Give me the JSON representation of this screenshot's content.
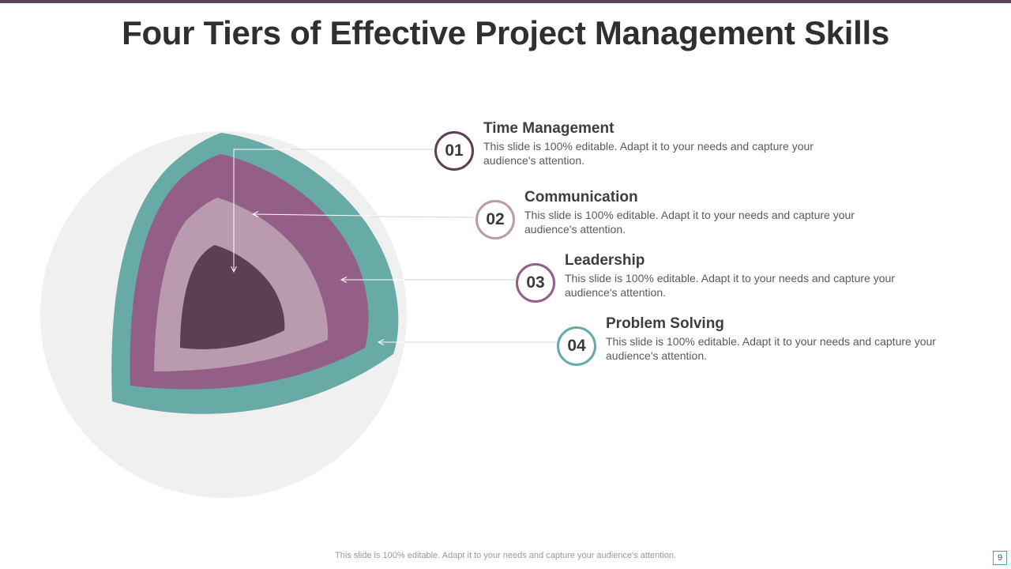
{
  "title": "Four Tiers of Effective Project Management Skills",
  "colors": {
    "top_bar": "#5a4457",
    "title": "#2f2f2f",
    "backdrop_circle": "#f0f0f0",
    "tier_1": "#67aaa6",
    "tier_2": "#935f86",
    "tier_3": "#b99aae",
    "tier_4": "#5c3e55"
  },
  "tiers": [
    {
      "number": "01",
      "heading": "Time Management",
      "description": "This slide is 100% editable. Adapt it to your needs and capture your audience's attention.",
      "badge_color": "#5c3e55"
    },
    {
      "number": "02",
      "heading": "Communication",
      "description": "This slide is 100% editable. Adapt it to your needs and capture your audience's attention.",
      "badge_color": "#b99aae"
    },
    {
      "number": "03",
      "heading": "Leadership",
      "description": "This slide is 100% editable. Adapt it to your needs and capture your audience's attention.",
      "badge_color": "#935f86"
    },
    {
      "number": "04",
      "heading": "Problem Solving",
      "description": "This slide is 100% editable. Adapt it to your needs and capture your audience's attention.",
      "badge_color": "#67aaa6"
    }
  ],
  "footer": "This slide is 100% editable. Adapt it to your needs and capture your audience's attention.",
  "page_number": "9"
}
